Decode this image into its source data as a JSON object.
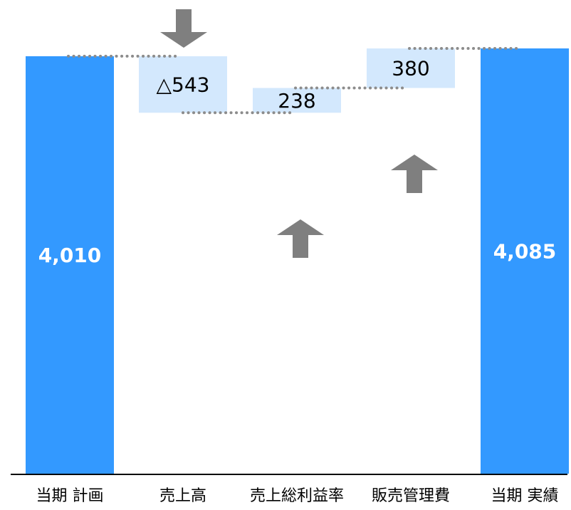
{
  "chart_data": {
    "type": "bar",
    "subtype": "waterfall",
    "title": "",
    "xlabel": "",
    "ylabel": "",
    "categories": [
      "当期 計画",
      "売上高",
      "売上総利益率",
      "販売管理費",
      "当期 実績"
    ],
    "values": [
      4010,
      -543,
      238,
      380,
      4085
    ],
    "value_labels": [
      "4,010",
      "△543",
      "238",
      "380",
      "4,085"
    ],
    "kinds": [
      "total",
      "delta",
      "delta",
      "delta",
      "total"
    ],
    "ylim": [
      0,
      4550
    ],
    "grid": false,
    "legend": "none",
    "colors": {
      "total_bar": "#3399ff",
      "delta_bar": "#d3e8fd",
      "arrow": "#7f7f7f",
      "connector": "#8c8c8c",
      "axis": "#000000",
      "total_label": "#ffffff",
      "delta_label": "#000000"
    },
    "icons": {
      "decrease": "arrow-down-icon",
      "increase": "arrow-up-icon"
    }
  }
}
